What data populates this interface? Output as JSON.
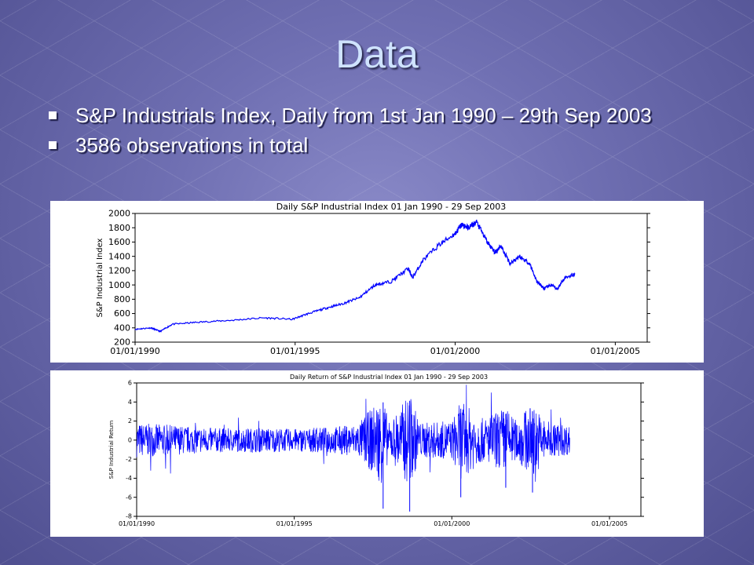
{
  "slide": {
    "title": "Data",
    "bullets": [
      "S&P Industrials Index, Daily from 1st Jan 1990 – 29th Sep 2003",
      "3586 observations in total"
    ]
  },
  "colors": {
    "series": "#0000ff",
    "title": "#cfe3ff",
    "text": "#ffffff"
  },
  "chart_data": [
    {
      "type": "line",
      "title": "Daily S&P Industrial Index 01 Jan 1990 - 29 Sep 2003",
      "xlabel": "",
      "ylabel": "S&P Industrial Index",
      "ylim": [
        200,
        2000
      ],
      "yticks": [
        200,
        400,
        600,
        800,
        1000,
        1200,
        1400,
        1600,
        1800,
        2000
      ],
      "xticks": [
        "01/01/1990",
        "01/01/1995",
        "01/01/2000",
        "01/01/2005"
      ],
      "xlim": [
        "1990-01-01",
        "2005-12-31"
      ],
      "grid": false,
      "series": [
        {
          "x": [
            "1990-01-01",
            "1990-07-01",
            "1990-10-15",
            "1991-03-01",
            "1992-01-01",
            "1993-01-01",
            "1994-01-01",
            "1994-12-01",
            "1995-06-01",
            "1996-01-01",
            "1996-07-01",
            "1997-01-01",
            "1997-07-01",
            "1998-01-01",
            "1998-07-15",
            "1998-09-01",
            "1999-01-01",
            "1999-07-01",
            "2000-01-01",
            "2000-03-15",
            "2000-06-01",
            "2000-09-01",
            "2001-01-01",
            "2001-04-01",
            "2001-06-01",
            "2001-09-20",
            "2002-01-01",
            "2002-05-01",
            "2002-07-20",
            "2002-10-10",
            "2003-01-01",
            "2003-03-10",
            "2003-06-01",
            "2003-09-29"
          ],
          "values": [
            380,
            400,
            350,
            450,
            480,
            505,
            540,
            520,
            600,
            680,
            740,
            820,
            1000,
            1050,
            1230,
            1100,
            1350,
            1560,
            1720,
            1840,
            1800,
            1880,
            1600,
            1450,
            1550,
            1300,
            1400,
            1300,
            1050,
            950,
            1000,
            940,
            1100,
            1150
          ]
        }
      ]
    },
    {
      "type": "line",
      "title": "Daily Return of S&P Industrial Index 01 Jan 1990 - 29 Sep 2003",
      "xlabel": "",
      "ylabel": "S&P Industrial Return",
      "ylim": [
        -8,
        6
      ],
      "yticks": [
        -8,
        -6,
        -4,
        -2,
        0,
        2,
        4,
        6
      ],
      "xticks": [
        "01/01/1990",
        "01/01/1995",
        "01/01/2000",
        "01/01/2005"
      ],
      "xlim": [
        "1990-01-01",
        "2005-12-31"
      ],
      "grid": false,
      "series": [
        {
          "x": [
            "1990-01-01",
            "1991-01-01",
            "1992-01-01",
            "1993-01-01",
            "1994-01-01",
            "1995-01-01",
            "1996-01-01",
            "1997-01-01",
            "1997-10-27",
            "1998-01-01",
            "1998-08-31",
            "1999-01-01",
            "2000-01-01",
            "2000-04-14",
            "2001-01-01",
            "2001-09-17",
            "2002-01-01",
            "2002-07-24",
            "2003-01-01",
            "2003-09-29"
          ],
          "amplitude": [
            1.8,
            1.5,
            1.0,
            0.8,
            0.9,
            0.7,
            1.0,
            1.6,
            7.2,
            1.8,
            7.5,
            1.9,
            2.2,
            6.0,
            2.6,
            5.0,
            2.5,
            5.5,
            2.2,
            1.3
          ]
        }
      ]
    }
  ]
}
